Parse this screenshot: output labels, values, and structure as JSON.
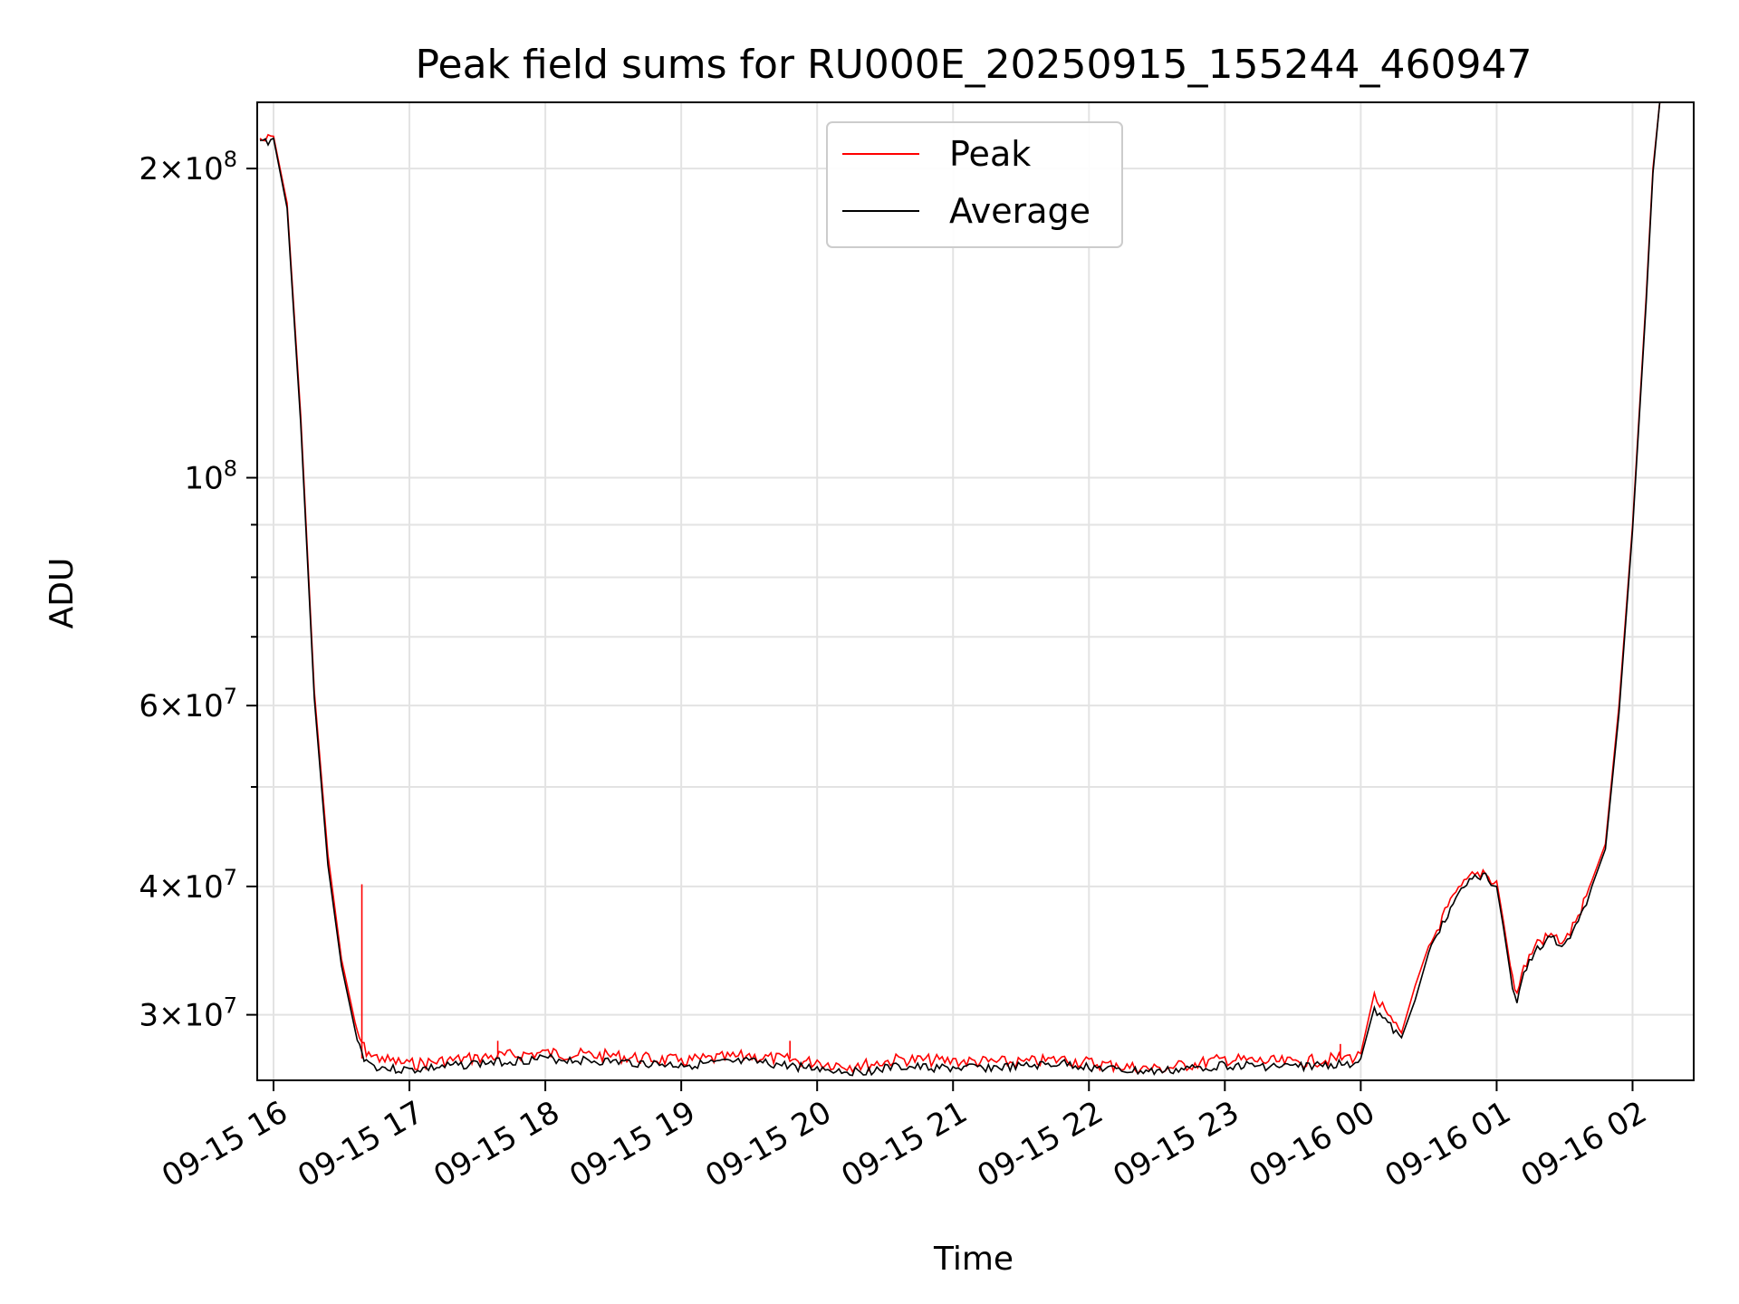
{
  "chart_data": {
    "type": "line",
    "title": "Peak field sums for RU000E_20250915_155244_460947",
    "xlabel": "Time",
    "ylabel": "ADU",
    "y_scale": "log",
    "ylim": [
      25900000,
      232000000
    ],
    "xlim_hours_since_0915_16": [
      -0.12,
      10.45
    ],
    "x_ticks": [
      {
        "hour": 0,
        "label": "09-15 16"
      },
      {
        "hour": 1,
        "label": "09-15 17"
      },
      {
        "hour": 2,
        "label": "09-15 18"
      },
      {
        "hour": 3,
        "label": "09-15 19"
      },
      {
        "hour": 4,
        "label": "09-15 20"
      },
      {
        "hour": 5,
        "label": "09-15 21"
      },
      {
        "hour": 6,
        "label": "09-15 22"
      },
      {
        "hour": 7,
        "label": "09-15 23"
      },
      {
        "hour": 8,
        "label": "09-16 00"
      },
      {
        "hour": 9,
        "label": "09-16 01"
      },
      {
        "hour": 10,
        "label": "09-16 02"
      }
    ],
    "y_ticks": [
      {
        "value": 30000000,
        "mantissa": "3",
        "base": "10",
        "exp": "7"
      },
      {
        "value": 40000000,
        "mantissa": "4",
        "base": "10",
        "exp": "7"
      },
      {
        "value": 60000000,
        "mantissa": "6",
        "base": "10",
        "exp": "7"
      },
      {
        "value": 100000000,
        "mantissa": "",
        "base": "10",
        "exp": "8"
      },
      {
        "value": 200000000,
        "mantissa": "2",
        "base": "10",
        "exp": "8"
      }
    ],
    "y_minor_ticks": [
      50000000,
      70000000,
      80000000,
      90000000
    ],
    "grid": true,
    "legend_position": "top-center",
    "series": [
      {
        "name": "Peak",
        "color": "#ff0000",
        "x_hours": [
          -0.1,
          0.0,
          0.1,
          0.2,
          0.3,
          0.4,
          0.5,
          0.6,
          0.65,
          0.7,
          0.8,
          1.0,
          1.5,
          2.0,
          2.5,
          3.0,
          3.5,
          4.0,
          4.3,
          4.6,
          5.0,
          5.5,
          5.8,
          6.2,
          6.5,
          7.0,
          7.5,
          7.9,
          8.0,
          8.1,
          8.2,
          8.3,
          8.4,
          8.5,
          8.6,
          8.7,
          8.8,
          8.9,
          9.0,
          9.05,
          9.1,
          9.15,
          9.2,
          9.3,
          9.4,
          9.5,
          9.6,
          9.7,
          9.8,
          9.9,
          10.0,
          10.1,
          10.15,
          10.2
        ],
        "values": [
          214000000,
          215000000,
          185000000,
          115000000,
          62000000,
          43000000,
          34000000,
          29500000,
          28200000,
          27600000,
          27300000,
          27000000,
          27400000,
          27700000,
          27500000,
          27200000,
          27500000,
          27100000,
          26900000,
          27300000,
          27200000,
          27100000,
          27300000,
          26900000,
          26700000,
          27300000,
          27100000,
          27400000,
          27500000,
          31500000,
          30000000,
          28800000,
          32000000,
          35000000,
          37500000,
          39500000,
          41000000,
          41500000,
          40500000,
          37000000,
          33500000,
          31500000,
          33500000,
          35500000,
          36000000,
          35500000,
          37500000,
          40500000,
          44000000,
          60000000,
          90000000,
          150000000,
          200000000,
          232000000
        ],
        "spikes": [
          {
            "x_hour": 0.65,
            "value": 40200000
          },
          {
            "x_hour": 3.8,
            "value": 28300000
          },
          {
            "x_hour": 1.65,
            "value": 28300000
          },
          {
            "x_hour": 7.85,
            "value": 28100000
          }
        ]
      },
      {
        "name": "Average",
        "color": "#000000",
        "x_hours": [
          -0.1,
          0.0,
          0.1,
          0.2,
          0.3,
          0.4,
          0.5,
          0.6,
          0.65,
          0.7,
          0.8,
          1.0,
          1.5,
          2.0,
          2.5,
          3.0,
          3.5,
          4.0,
          4.3,
          4.6,
          5.0,
          5.5,
          5.8,
          6.2,
          6.5,
          7.0,
          7.5,
          7.9,
          8.0,
          8.1,
          8.2,
          8.3,
          8.4,
          8.5,
          8.6,
          8.7,
          8.8,
          8.9,
          9.0,
          9.05,
          9.1,
          9.15,
          9.2,
          9.3,
          9.4,
          9.5,
          9.6,
          9.7,
          9.8,
          9.9,
          10.0,
          10.1,
          10.15,
          10.2
        ],
        "values": [
          213000000,
          214000000,
          183000000,
          113000000,
          61000000,
          42000000,
          33500000,
          29000000,
          27600000,
          27000000,
          26700000,
          26600000,
          27000000,
          27300000,
          27100000,
          26900000,
          27100000,
          26700000,
          26500000,
          26800000,
          26700000,
          26800000,
          27000000,
          26600000,
          26500000,
          26900000,
          26800000,
          27000000,
          27200000,
          30500000,
          29500000,
          28500000,
          31000000,
          34500000,
          37000000,
          39000000,
          40700000,
          41200000,
          40000000,
          36500000,
          33000000,
          30800000,
          33000000,
          35000000,
          35700000,
          35200000,
          37000000,
          40000000,
          43500000,
          59000000,
          89000000,
          148000000,
          198000000,
          232000000
        ]
      }
    ]
  }
}
